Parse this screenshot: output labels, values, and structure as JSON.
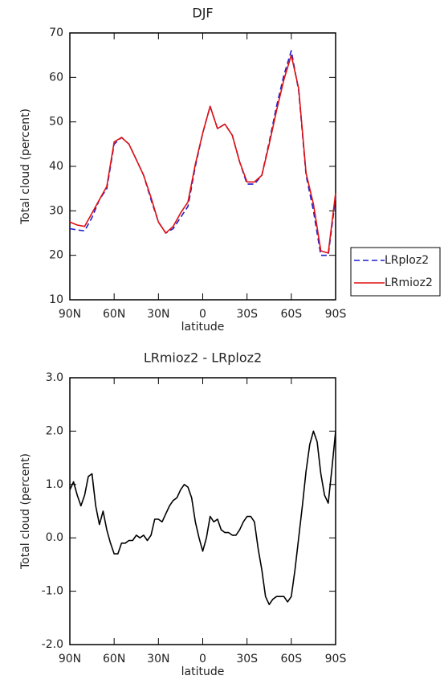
{
  "chart_data": [
    {
      "type": "line",
      "title": "DJF",
      "x_label": "latitude",
      "y_label": "Total cloud (percent)",
      "x": [
        90,
        85,
        80,
        75,
        70,
        65,
        60,
        55,
        50,
        45,
        40,
        35,
        30,
        25,
        20,
        15,
        10,
        5,
        0,
        -5,
        -10,
        -15,
        -20,
        -25,
        -30,
        -35,
        -40,
        -45,
        -50,
        -55,
        -60,
        -65,
        -70,
        -75,
        -80,
        -85,
        -90
      ],
      "series": [
        {
          "name": "LRploz2",
          "color": "#1f1fcf",
          "line_style": "dashed",
          "values": [
            26,
            25.7,
            25.5,
            28.5,
            32.5,
            35,
            45,
            46.5,
            45,
            41.5,
            38,
            32.5,
            27.5,
            25,
            26,
            28.5,
            31,
            40,
            47.5,
            53.5,
            48.5,
            49.5,
            47,
            41,
            36,
            36,
            38,
            45.5,
            53.5,
            60.5,
            66,
            57,
            38,
            30,
            20,
            20,
            33
          ]
        },
        {
          "name": "LRmioz2",
          "color": "#e01010",
          "line_style": "solid",
          "values": [
            27.5,
            26.8,
            26.5,
            29.5,
            32.5,
            35.5,
            45.5,
            46.5,
            45,
            41.5,
            38,
            33,
            27.5,
            25,
            26.5,
            29.5,
            32,
            40.5,
            47.5,
            53.5,
            48.5,
            49.5,
            47,
            41,
            36.5,
            36.5,
            38,
            45,
            52.5,
            59.5,
            65,
            57.5,
            38.5,
            31.5,
            21,
            20.5,
            34
          ]
        }
      ],
      "xlim": [
        90,
        -90
      ],
      "xticks": [
        {
          "value": 90,
          "label": "90N"
        },
        {
          "value": 60,
          "label": "60N"
        },
        {
          "value": 30,
          "label": "30N"
        },
        0,
        {
          "value": -30,
          "label": "30S"
        },
        {
          "value": -60,
          "label": "60S"
        },
        {
          "value": -90,
          "label": "90S"
        }
      ],
      "ylim": [
        10,
        70
      ],
      "yticks": [
        10,
        20,
        30,
        40,
        50,
        60,
        70
      ],
      "legend": "right"
    },
    {
      "type": "line",
      "title": "LRmioz2 - LRploz2",
      "x_label": "latitude",
      "y_label": "Total cloud (percent)",
      "x": [
        90,
        87.5,
        85,
        82.5,
        80,
        77.5,
        75,
        72.5,
        70,
        67.5,
        65,
        62.5,
        60,
        57.5,
        55,
        52.5,
        50,
        47.5,
        45,
        42.5,
        40,
        37.5,
        35,
        32.5,
        30,
        27.5,
        25,
        22.5,
        20,
        17.5,
        15,
        12.5,
        10,
        7.5,
        5,
        2.5,
        0,
        -2.5,
        -5,
        -7.5,
        -10,
        -12.5,
        -15,
        -17.5,
        -20,
        -22.5,
        -25,
        -27.5,
        -30,
        -32.5,
        -35,
        -37.5,
        -40,
        -42.5,
        -45,
        -47.5,
        -50,
        -52.5,
        -55,
        -57.5,
        -60,
        -62.5,
        -65,
        -67.5,
        -70,
        -72.5,
        -75,
        -77.5,
        -80,
        -82.5,
        -85,
        -87.5,
        -90
      ],
      "values": [
        0.9,
        1.05,
        0.8,
        0.6,
        0.8,
        1.15,
        1.2,
        0.6,
        0.25,
        0.5,
        0.15,
        -0.1,
        -0.3,
        -0.3,
        -0.1,
        -0.1,
        -0.05,
        -0.05,
        0.05,
        0,
        0.05,
        -0.05,
        0.05,
        0.35,
        0.35,
        0.3,
        0.45,
        0.6,
        0.7,
        0.75,
        0.9,
        1,
        0.95,
        0.75,
        0.3,
        0,
        -0.25,
        0,
        0.4,
        0.3,
        0.35,
        0.15,
        0.1,
        0.1,
        0.05,
        0.05,
        0.15,
        0.3,
        0.4,
        0.4,
        0.3,
        -0.2,
        -0.6,
        -1.1,
        -1.25,
        -1.15,
        -1.1,
        -1.1,
        -1.1,
        -1.2,
        -1.1,
        -0.6,
        0,
        0.6,
        1.25,
        1.75,
        2,
        1.8,
        1.2,
        0.8,
        0.65,
        1.3,
        2
      ],
      "color": "#000000",
      "xlim": [
        90,
        -90
      ],
      "xticks": [
        {
          "value": 90,
          "label": "90N"
        },
        {
          "value": 60,
          "label": "60N"
        },
        {
          "value": 30,
          "label": "30N"
        },
        0,
        {
          "value": -30,
          "label": "30S"
        },
        {
          "value": -60,
          "label": "60S"
        },
        {
          "value": -90,
          "label": "90S"
        }
      ],
      "ylim": [
        -2,
        3
      ],
      "yticks": [
        {
          "value": -2,
          "label": "-2.0"
        },
        {
          "value": -1,
          "label": "-1.0"
        },
        {
          "value": 0,
          "label": "0.0"
        },
        {
          "value": 1,
          "label": "1.0"
        },
        {
          "value": 2,
          "label": "2.0"
        },
        {
          "value": 3,
          "label": "3.0"
        }
      ]
    }
  ]
}
